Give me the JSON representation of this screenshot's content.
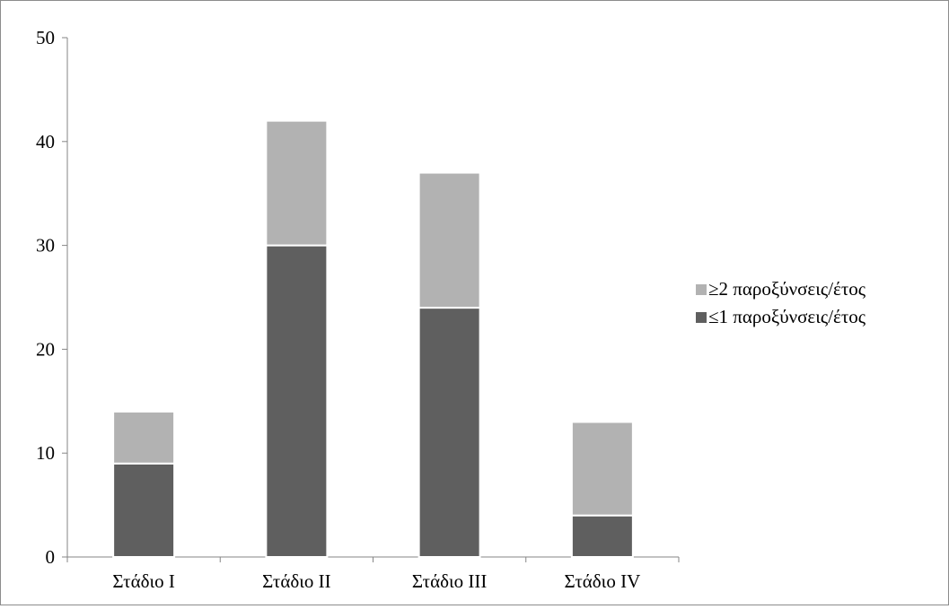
{
  "chart_data": {
    "type": "bar",
    "stacked": true,
    "categories": [
      "Στάδιο I",
      "Στάδιο II",
      "Στάδιο III",
      "Στάδιο IV"
    ],
    "series": [
      {
        "name": "≤1 παροξύνσεις/έτος",
        "values": [
          9,
          30,
          24,
          4
        ],
        "color": "#5f5f5f"
      },
      {
        "name": "≥2 παροξύνσεις/έτος",
        "values": [
          5,
          12,
          13,
          9
        ],
        "color": "#b2b2b2"
      }
    ],
    "title": "",
    "xlabel": "",
    "ylabel": "",
    "ylim": [
      0,
      50
    ],
    "yticks": [
      0,
      10,
      20,
      30,
      40,
      50
    ],
    "grid": false,
    "legend": {
      "placement": "right",
      "order": [
        "≥2 παροξύνσεις/έτος",
        "≤1 παροξύνσεις/έτος"
      ]
    }
  }
}
